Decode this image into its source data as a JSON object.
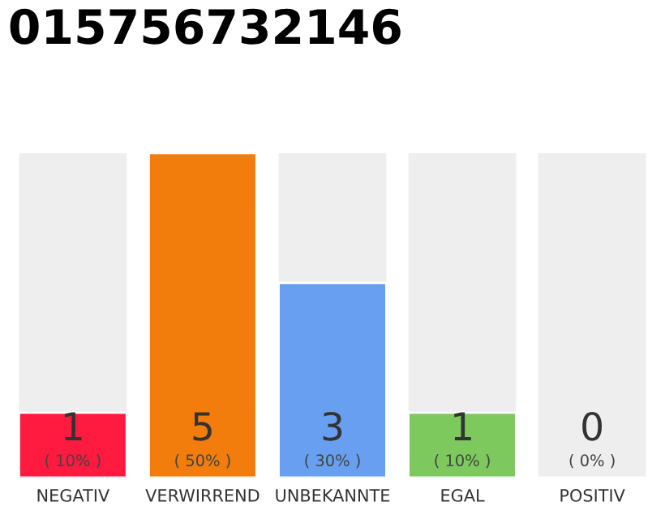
{
  "chart_data": {
    "type": "bar",
    "title": "015756732146",
    "categories": [
      "NEGATIV",
      "VERWIRREND",
      "UNBEKANNTE",
      "EGAL",
      "POSITIV"
    ],
    "values": [
      1,
      5,
      3,
      1,
      0
    ],
    "colors": [
      "#ff1a40",
      "#f27d0c",
      "#699ff0",
      "#7dc95e",
      null
    ],
    "ylim": [
      0,
      5
    ],
    "data_labels": true,
    "annotations": [
      "( 10% )",
      "( 50% )",
      "( 30% )",
      "( 10% )",
      "( 0% )"
    ]
  }
}
